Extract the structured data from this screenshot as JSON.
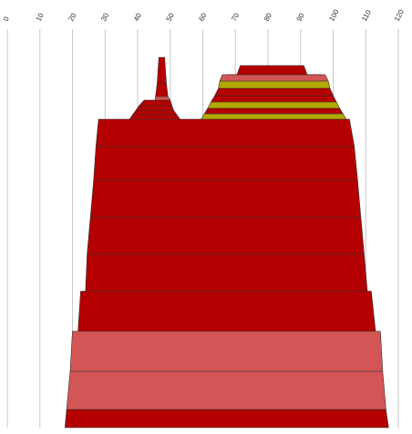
{
  "chart_data": {
    "type": "area",
    "title": "",
    "xlabel": "",
    "ylabel": "",
    "xlim": [
      0,
      120
    ],
    "x_ticks": [
      0,
      10,
      20,
      30,
      40,
      50,
      60,
      70,
      80,
      90,
      100,
      110,
      120
    ],
    "grid": true,
    "legend": "none",
    "colors": {
      "dark_red": "#b40000",
      "light_red": "#d45555",
      "olive": "#b3a800",
      "grid": "#c8c8c8"
    },
    "layers": [
      {
        "x_start": 18.2,
        "x_end": 116.2,
        "x_start_bottom": 17.7,
        "x_end_bottom": 117.0,
        "tone": "dark_red"
      },
      {
        "x_start": 19.3,
        "x_end": 115.2,
        "x_start_bottom": 18.2,
        "x_end_bottom": 116.2,
        "tone": "light_red"
      },
      {
        "x_start": 20.0,
        "x_end": 114.5,
        "x_start_bottom": 19.3,
        "x_end_bottom": 115.2,
        "tone": "light_red"
      },
      {
        "x_start": 22.5,
        "x_end": 111.7,
        "x_start_bottom": 21.7,
        "x_end_bottom": 113.0,
        "tone": "dark_red"
      },
      {
        "x_start": 24.5,
        "x_end": 109.5,
        "x_start_bottom": 24.0,
        "x_end_bottom": 110.5,
        "tone": "dark_red"
      },
      {
        "x_start": 25.5,
        "x_end": 108.5,
        "x_start_bottom": 24.5,
        "x_end_bottom": 109.5,
        "tone": "dark_red"
      },
      {
        "x_start": 26.5,
        "x_end": 107.5,
        "x_start_bottom": 25.5,
        "x_end_bottom": 108.5,
        "tone": "dark_red"
      },
      {
        "x_start": 27.2,
        "x_end": 106.5,
        "x_start_bottom": 26.5,
        "x_end_bottom": 107.5,
        "tone": "dark_red"
      },
      {
        "x_start": 28.0,
        "x_end": 105.0,
        "x_start_bottom": 27.2,
        "x_end_bottom": 106.5,
        "tone": "dark_red"
      }
    ],
    "peaks": [
      {
        "name": "",
        "base": [
          37.5,
          53.0
        ],
        "levels": [
          {
            "x_start": 37.5,
            "x_end": 53.0,
            "x_start_top": 38.5,
            "x_end_top": 52.0,
            "tone": "dark_red"
          },
          {
            "x_start": 38.5,
            "x_end": 52.0,
            "x_start_top": 39.5,
            "x_end_top": 51.0,
            "tone": "dark_red"
          },
          {
            "x_start": 39.5,
            "x_end": 51.0,
            "x_start_top": 40.5,
            "x_end_top": 50.5,
            "tone": "dark_red"
          },
          {
            "x_start": 40.5,
            "x_end": 50.5,
            "x_start_top": 42.0,
            "x_end_top": 50.0,
            "tone": "dark_red"
          },
          {
            "x_start": 45.3,
            "x_end": 50.0,
            "x_start_top": 45.5,
            "x_end_top": 49.3,
            "tone": "light_red"
          },
          {
            "x_start": 45.5,
            "x_end": 49.3,
            "x_start_top": 46.0,
            "x_end_top": 48.8,
            "tone": "dark_red"
          },
          {
            "x_start": 46.0,
            "x_end": 48.8,
            "x_start_top": 46.5,
            "x_end_top": 48.3,
            "tone": "dark_red"
          }
        ]
      },
      {
        "name": "",
        "base": [
          59.5,
          104.0
        ],
        "levels": [
          {
            "x_start": 59.5,
            "x_end": 104.0,
            "x_start_top": 60.5,
            "x_end_top": 103.0,
            "tone": "olive"
          },
          {
            "x_start": 60.5,
            "x_end": 103.0,
            "x_start_top": 61.5,
            "x_end_top": 102.0,
            "tone": "dark_red"
          },
          {
            "x_start": 61.5,
            "x_end": 102.0,
            "x_start_top": 62.5,
            "x_end_top": 101.0,
            "tone": "olive"
          },
          {
            "x_start": 62.5,
            "x_end": 101.0,
            "x_start_top": 63.7,
            "x_end_top": 100.0,
            "tone": "dark_red"
          },
          {
            "x_start": 63.7,
            "x_end": 100.0,
            "x_start_top": 64.8,
            "x_end_top": 99.0,
            "tone": "dark_red"
          },
          {
            "x_start": 64.8,
            "x_end": 99.0,
            "x_start_top": 65.2,
            "x_end_top": 98.5,
            "tone": "olive"
          },
          {
            "x_start": 65.2,
            "x_end": 98.5,
            "x_start_top": 66.0,
            "x_end_top": 97.5,
            "tone": "light_red"
          },
          {
            "x_start": 67.0,
            "x_end": 96.5,
            "x_start_top": 68.0,
            "x_end_top": 95.5,
            "tone": "dark_red"
          },
          {
            "x_start": 70.0,
            "x_end": 92.5,
            "x_start_top": 70.5,
            "x_end_top": 92.0,
            "tone": "dark_red"
          },
          {
            "x_start": 70.5,
            "x_end": 92.0,
            "x_start_top": 71.5,
            "x_end_top": 91.0,
            "tone": "dark_red"
          }
        ]
      }
    ]
  }
}
